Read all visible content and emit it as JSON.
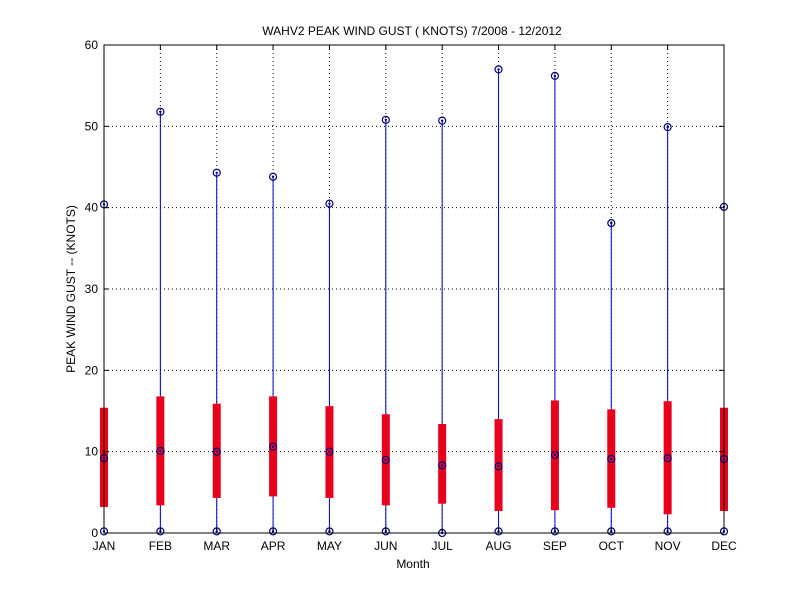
{
  "chart_data": {
    "type": "box",
    "title": "WAHV2  PEAK WIND GUST ( KNOTS) 7/2008 - 12/2012",
    "xlabel": "Month",
    "ylabel": "PEAK WIND GUST -- (KNOTS)",
    "ylim": [
      0,
      60
    ],
    "yticks": [
      0,
      10,
      20,
      30,
      40,
      50,
      60
    ],
    "grid": true,
    "categories": [
      "JAN",
      "FEB",
      "MAR",
      "APR",
      "MAY",
      "JUN",
      "JUL",
      "AUG",
      "SEP",
      "OCT",
      "NOV",
      "DEC"
    ],
    "series": [
      {
        "min": [
          0.2,
          0.2,
          0.2,
          0.2,
          0.2,
          0.2,
          0.0,
          0.2,
          0.2,
          0.2,
          0.2,
          0.2
        ],
        "q1": [
          3.2,
          3.4,
          4.3,
          4.5,
          4.3,
          3.4,
          3.6,
          2.7,
          2.8,
          3.1,
          2.3,
          2.7
        ],
        "median": [
          9.2,
          10.1,
          10.0,
          10.6,
          10.0,
          9.0,
          8.3,
          8.2,
          9.6,
          9.1,
          9.2,
          9.1
        ],
        "q3": [
          15.4,
          16.8,
          15.9,
          16.8,
          15.6,
          14.6,
          13.4,
          14.0,
          16.3,
          15.2,
          16.2,
          15.4
        ],
        "max": [
          40.4,
          51.8,
          44.3,
          43.8,
          40.5,
          50.8,
          50.7,
          57.0,
          56.2,
          38.1,
          49.9,
          40.1
        ]
      }
    ],
    "colors": {
      "whisker": "#0000cc",
      "box": "#e8001c",
      "marker": "#000080",
      "grid": "#000000"
    }
  }
}
